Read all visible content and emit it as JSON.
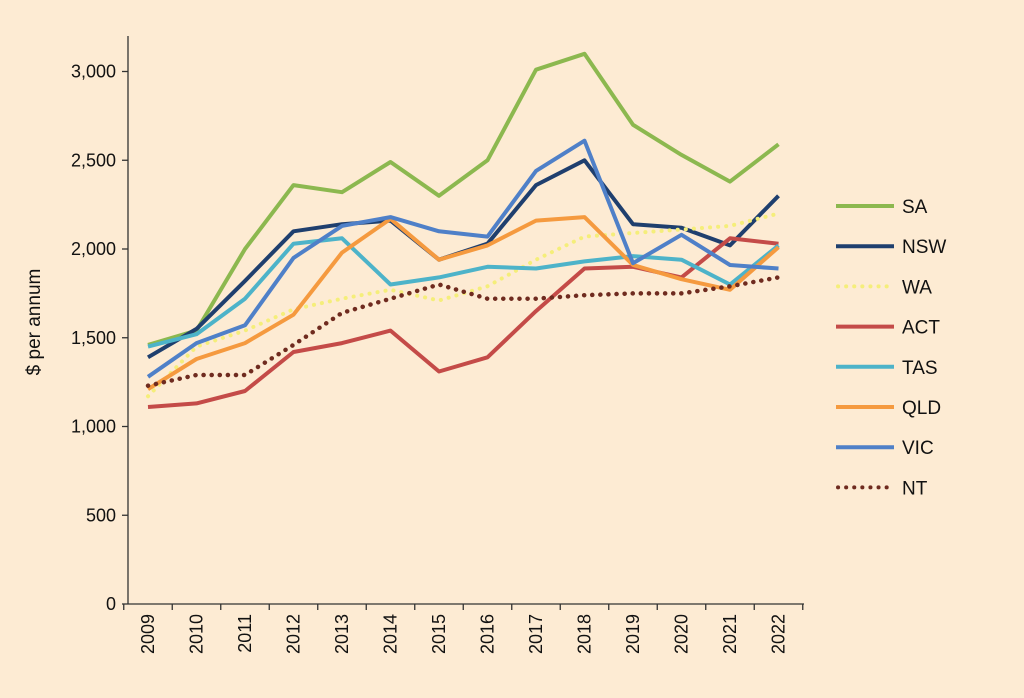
{
  "page": {
    "background": "#fdebd3"
  },
  "chart_data": {
    "type": "line",
    "title": "",
    "xlabel": "",
    "ylabel": "$ per annum",
    "x": [
      "2009",
      "2010",
      "2011",
      "2012",
      "2013",
      "2014",
      "2015",
      "2016",
      "2017",
      "2018",
      "2019",
      "2020",
      "2021",
      "2022"
    ],
    "ylim": [
      0,
      3200
    ],
    "yticks": [
      0,
      500,
      1000,
      1500,
      2000,
      2500,
      3000
    ],
    "ytick_labels": [
      "0",
      "500",
      "1,000",
      "1,500",
      "2,000",
      "2,500",
      "3,000"
    ],
    "grid": false,
    "legend_position": "right",
    "series": [
      {
        "name": "SA",
        "color": "#8cb84f",
        "style": "solid",
        "values": [
          1460,
          1540,
          2000,
          2360,
          2320,
          2490,
          2300,
          2500,
          3010,
          3100,
          2700,
          2530,
          2380,
          2590
        ]
      },
      {
        "name": "NSW",
        "color": "#1f3f6e",
        "style": "solid",
        "values": [
          1390,
          1550,
          1820,
          2100,
          2140,
          2160,
          1940,
          2030,
          2360,
          2500,
          2140,
          2120,
          2020,
          2300
        ]
      },
      {
        "name": "WA",
        "color": "#f5ee7a",
        "style": "dotted",
        "values": [
          1170,
          1450,
          1540,
          1660,
          1720,
          1770,
          1710,
          1790,
          1940,
          2070,
          2090,
          2110,
          2130,
          2200
        ]
      },
      {
        "name": "ACT",
        "color": "#c44b48",
        "style": "solid",
        "values": [
          1110,
          1130,
          1200,
          1420,
          1470,
          1540,
          1310,
          1390,
          1650,
          1890,
          1900,
          1840,
          2060,
          2030
        ]
      },
      {
        "name": "TAS",
        "color": "#4db3c9",
        "style": "solid",
        "values": [
          1450,
          1520,
          1720,
          2030,
          2060,
          1800,
          1840,
          1900,
          1890,
          1930,
          1960,
          1940,
          1800,
          2020
        ]
      },
      {
        "name": "QLD",
        "color": "#f59a3f",
        "style": "solid",
        "values": [
          1210,
          1380,
          1470,
          1630,
          1980,
          2170,
          1940,
          2020,
          2160,
          2180,
          1910,
          1830,
          1770,
          2010
        ]
      },
      {
        "name": "VIC",
        "color": "#4f80c8",
        "style": "solid",
        "values": [
          1280,
          1470,
          1570,
          1950,
          2130,
          2180,
          2100,
          2070,
          2440,
          2610,
          1920,
          2080,
          1910,
          1890
        ]
      },
      {
        "name": "NT",
        "color": "#6f2b1f",
        "style": "dotted",
        "values": [
          1230,
          1290,
          1290,
          1460,
          1640,
          1720,
          1800,
          1720,
          1720,
          1740,
          1750,
          1750,
          1790,
          1840
        ]
      }
    ]
  }
}
